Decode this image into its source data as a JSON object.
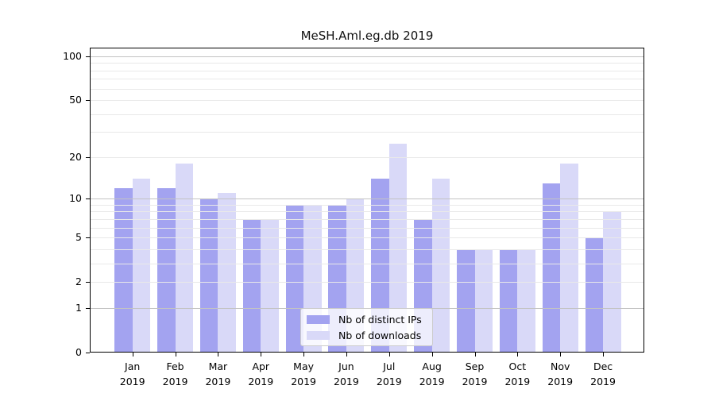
{
  "chart_data": {
    "type": "bar",
    "title": "MeSH.Aml.eg.db 2019",
    "categories": [
      {
        "month": "Jan",
        "year": "2019"
      },
      {
        "month": "Feb",
        "year": "2019"
      },
      {
        "month": "Mar",
        "year": "2019"
      },
      {
        "month": "Apr",
        "year": "2019"
      },
      {
        "month": "May",
        "year": "2019"
      },
      {
        "month": "Jun",
        "year": "2019"
      },
      {
        "month": "Jul",
        "year": "2019"
      },
      {
        "month": "Aug",
        "year": "2019"
      },
      {
        "month": "Sep",
        "year": "2019"
      },
      {
        "month": "Oct",
        "year": "2019"
      },
      {
        "month": "Nov",
        "year": "2019"
      },
      {
        "month": "Dec",
        "year": "2019"
      }
    ],
    "series": [
      {
        "name": "Nb of distinct IPs",
        "color": "#a3a3f0",
        "values": [
          12,
          12,
          10,
          7,
          9,
          9,
          14,
          7,
          4,
          4,
          13,
          5
        ]
      },
      {
        "name": "Nb of downloads",
        "color": "#d9d9f8",
        "values": [
          14,
          18,
          11,
          7,
          9,
          10,
          25,
          14,
          4,
          4,
          18,
          8
        ]
      }
    ],
    "yscale": "log(value+1)",
    "yticks": [
      0,
      1,
      2,
      5,
      10,
      20,
      50,
      100
    ],
    "ytick_labels": [
      "0",
      "1",
      "2",
      "5",
      "10",
      "20",
      "50",
      "100"
    ],
    "major_gridlines": [
      1,
      10,
      100
    ],
    "minor_gridlines": [
      2,
      3,
      4,
      5,
      6,
      7,
      8,
      9,
      20,
      30,
      40,
      50,
      60,
      70,
      80,
      90
    ],
    "ylim": [
      0,
      114
    ],
    "xlabel": "",
    "ylabel": "",
    "grid": true,
    "legend_position": "inside lower-center"
  },
  "colors": {
    "background": "#ffffff",
    "spine": "#000000",
    "major_grid": "#c3c3c3",
    "minor_grid": "#e9e9e9"
  }
}
